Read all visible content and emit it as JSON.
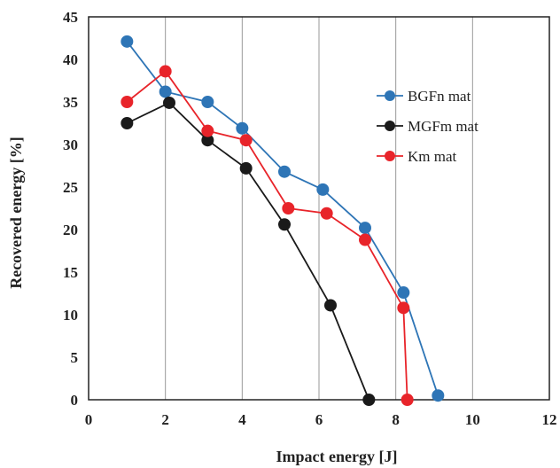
{
  "chart_data": {
    "type": "line",
    "xlabel": "Impact energy  [J]",
    "ylabel": "Recovered energy  [%]",
    "xlim": [
      0,
      12
    ],
    "ylim": [
      0,
      45
    ],
    "xticks": [
      0,
      2,
      4,
      6,
      8,
      10,
      12
    ],
    "yticks": [
      0,
      5,
      10,
      15,
      20,
      25,
      30,
      35,
      40,
      45
    ],
    "grid": "vertical",
    "legend_position": "right",
    "series": [
      {
        "name": "BGFn mat",
        "color": "#2e75b6",
        "x": [
          1.0,
          2.0,
          3.1,
          4.0,
          5.1,
          6.1,
          7.2,
          8.2,
          9.1
        ],
        "y": [
          42.1,
          36.2,
          35.0,
          31.9,
          26.8,
          24.7,
          20.2,
          12.6,
          0.5
        ]
      },
      {
        "name": "MGFm mat",
        "color": "#1a1a1a",
        "x": [
          1.0,
          2.1,
          3.1,
          4.1,
          5.1,
          6.3,
          7.3
        ],
        "y": [
          32.5,
          34.9,
          30.5,
          27.2,
          20.6,
          11.1,
          0.0
        ]
      },
      {
        "name": "Km mat",
        "color": "#e8242a",
        "x": [
          1.0,
          2.0,
          3.1,
          4.1,
          5.2,
          6.2,
          7.2,
          8.2,
          8.3
        ],
        "y": [
          35.0,
          38.6,
          31.6,
          30.5,
          22.5,
          21.9,
          18.8,
          10.8,
          0.0
        ]
      }
    ]
  }
}
